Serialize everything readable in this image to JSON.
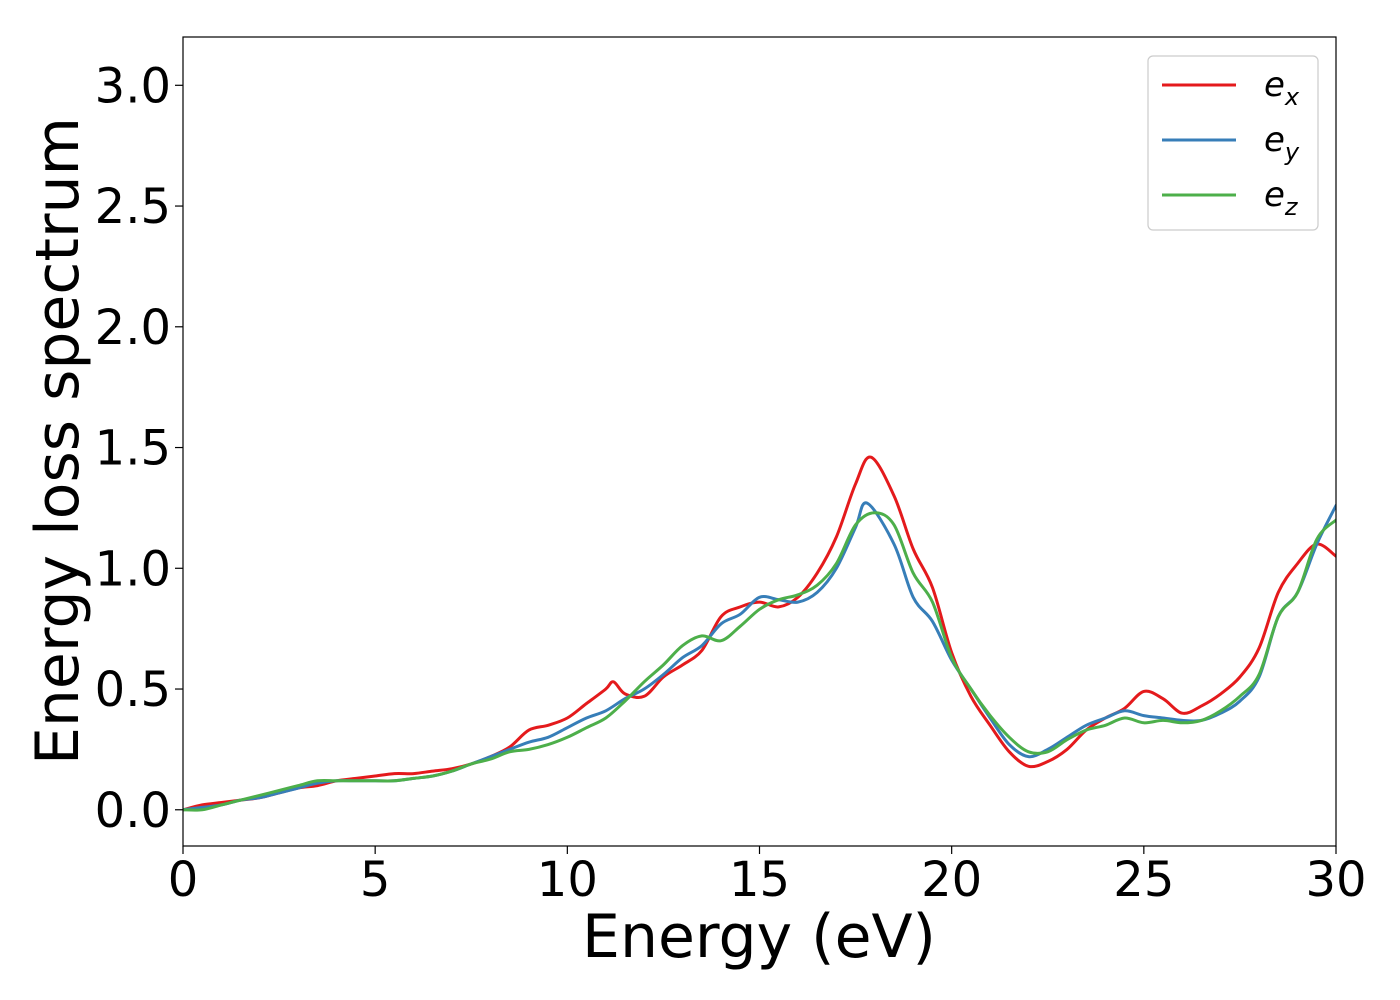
{
  "chart_data": {
    "type": "line",
    "title": "",
    "xlabel": "Energy (eV)",
    "ylabel": "Energy loss spectrum",
    "xlim": [
      0,
      30
    ],
    "ylim": [
      -0.15,
      3.2
    ],
    "xticks": [
      0,
      5,
      10,
      15,
      20,
      25,
      30
    ],
    "yticks": [
      0.0,
      0.5,
      1.0,
      1.5,
      2.0,
      2.5,
      3.0
    ],
    "grid": false,
    "legend_position": "top-right",
    "series": [
      {
        "name": "e",
        "subscript": "x",
        "color": "#e41a1c",
        "x": [
          0,
          0.5,
          1.0,
          1.5,
          2.0,
          2.5,
          3.0,
          3.5,
          4.0,
          4.5,
          5.0,
          5.5,
          6.0,
          6.5,
          7.0,
          7.5,
          8.0,
          8.5,
          9.0,
          9.5,
          10.0,
          10.5,
          11.0,
          11.2,
          11.5,
          12.0,
          12.5,
          13.0,
          13.5,
          14.0,
          14.5,
          15.0,
          15.5,
          16.0,
          16.5,
          17.0,
          17.5,
          17.9,
          18.5,
          19.0,
          19.5,
          20.0,
          20.5,
          21.0,
          21.5,
          22.0,
          22.5,
          23.0,
          23.5,
          24.0,
          24.5,
          25.0,
          25.5,
          26.0,
          26.5,
          27.0,
          27.5,
          28.0,
          28.5,
          29.0,
          29.5,
          30.0
        ],
        "values": [
          0.0,
          0.02,
          0.03,
          0.04,
          0.05,
          0.07,
          0.09,
          0.1,
          0.12,
          0.13,
          0.14,
          0.15,
          0.15,
          0.16,
          0.17,
          0.19,
          0.22,
          0.26,
          0.33,
          0.35,
          0.38,
          0.44,
          0.5,
          0.53,
          0.48,
          0.47,
          0.55,
          0.6,
          0.66,
          0.8,
          0.84,
          0.86,
          0.84,
          0.88,
          0.98,
          1.13,
          1.35,
          1.46,
          1.3,
          1.08,
          0.92,
          0.65,
          0.47,
          0.35,
          0.24,
          0.18,
          0.2,
          0.25,
          0.33,
          0.38,
          0.42,
          0.49,
          0.46,
          0.4,
          0.43,
          0.48,
          0.55,
          0.67,
          0.9,
          1.02,
          1.1,
          1.05
        ]
      },
      {
        "name": "e",
        "subscript": "y",
        "color": "#377eb8",
        "x": [
          0,
          0.5,
          1.0,
          1.5,
          2.0,
          2.5,
          3.0,
          3.5,
          4.0,
          4.5,
          5.0,
          5.5,
          6.0,
          6.5,
          7.0,
          7.5,
          8.0,
          8.5,
          9.0,
          9.5,
          10.0,
          10.5,
          11.0,
          11.5,
          12.0,
          12.5,
          13.0,
          13.5,
          14.0,
          14.5,
          15.0,
          15.5,
          16.0,
          16.5,
          17.0,
          17.5,
          17.8,
          18.5,
          19.0,
          19.5,
          20.0,
          20.5,
          21.0,
          21.5,
          22.0,
          22.5,
          23.0,
          23.5,
          24.0,
          24.5,
          25.0,
          25.5,
          26.0,
          26.5,
          27.0,
          27.5,
          28.0,
          28.5,
          29.0,
          29.5,
          30.0
        ],
        "values": [
          0.0,
          0.01,
          0.02,
          0.04,
          0.05,
          0.07,
          0.09,
          0.11,
          0.12,
          0.12,
          0.12,
          0.12,
          0.13,
          0.14,
          0.16,
          0.19,
          0.22,
          0.25,
          0.28,
          0.3,
          0.34,
          0.38,
          0.41,
          0.46,
          0.5,
          0.56,
          0.63,
          0.68,
          0.77,
          0.81,
          0.88,
          0.87,
          0.86,
          0.9,
          1.0,
          1.17,
          1.27,
          1.1,
          0.88,
          0.78,
          0.62,
          0.5,
          0.38,
          0.27,
          0.22,
          0.25,
          0.3,
          0.35,
          0.38,
          0.41,
          0.39,
          0.38,
          0.37,
          0.37,
          0.4,
          0.45,
          0.55,
          0.8,
          0.9,
          1.1,
          1.26
        ]
      },
      {
        "name": "e",
        "subscript": "z",
        "color": "#4daf4a",
        "x": [
          0,
          0.5,
          1.0,
          1.5,
          2.0,
          2.5,
          3.0,
          3.5,
          4.0,
          4.5,
          5.0,
          5.5,
          6.0,
          6.5,
          7.0,
          7.5,
          8.0,
          8.5,
          9.0,
          9.5,
          10.0,
          10.5,
          11.0,
          11.5,
          12.0,
          12.5,
          13.0,
          13.5,
          14.0,
          14.5,
          15.0,
          15.5,
          16.0,
          16.5,
          17.0,
          17.5,
          18.0,
          18.5,
          19.0,
          19.5,
          20.0,
          20.5,
          21.0,
          21.5,
          22.0,
          22.5,
          23.0,
          23.5,
          24.0,
          24.5,
          25.0,
          25.5,
          26.0,
          26.5,
          27.0,
          27.5,
          28.0,
          28.5,
          29.0,
          29.5,
          30.0
        ],
        "values": [
          0.0,
          0.0,
          0.02,
          0.04,
          0.06,
          0.08,
          0.1,
          0.12,
          0.12,
          0.12,
          0.12,
          0.12,
          0.13,
          0.14,
          0.16,
          0.19,
          0.21,
          0.24,
          0.25,
          0.27,
          0.3,
          0.34,
          0.38,
          0.45,
          0.53,
          0.6,
          0.68,
          0.72,
          0.7,
          0.76,
          0.83,
          0.87,
          0.89,
          0.93,
          1.02,
          1.18,
          1.23,
          1.18,
          0.98,
          0.86,
          0.63,
          0.5,
          0.39,
          0.3,
          0.24,
          0.24,
          0.29,
          0.33,
          0.35,
          0.38,
          0.36,
          0.37,
          0.36,
          0.37,
          0.41,
          0.47,
          0.56,
          0.8,
          0.9,
          1.12,
          1.2
        ]
      }
    ]
  }
}
